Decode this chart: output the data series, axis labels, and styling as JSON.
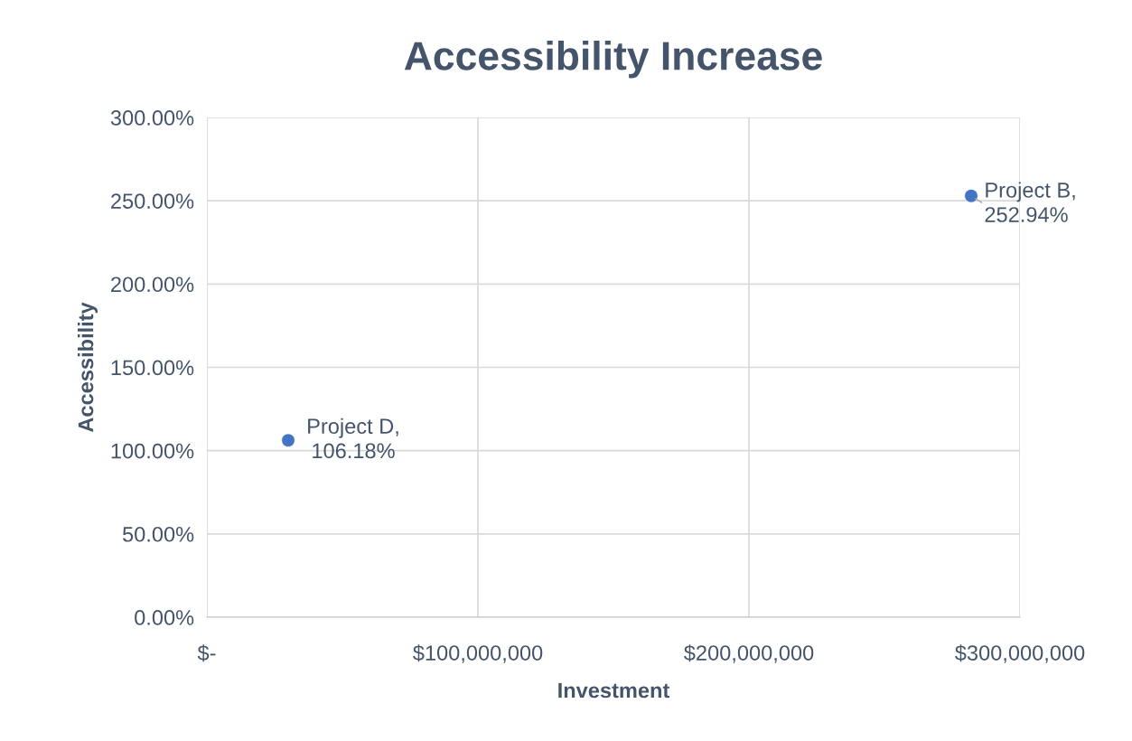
{
  "chart_data": {
    "type": "scatter",
    "title": "Accessibility Increase",
    "xlabel": "Investment",
    "ylabel": "Accessibility",
    "series": [
      {
        "color": "#4472c4",
        "x": [
          30000000,
          282000000
        ],
        "values": [
          106.18,
          252.94
        ]
      }
    ],
    "marker": "circle",
    "xlim": [
      0,
      300000000
    ],
    "xticks": [
      {
        "value": 0,
        "label": "$-"
      },
      {
        "value": 100000000,
        "label": "$100,000,000"
      },
      {
        "value": 200000000,
        "label": "$200,000,000"
      },
      {
        "value": 300000000,
        "label": "$300,000,000"
      }
    ],
    "ylim": [
      0,
      300
    ],
    "yticks": [
      {
        "value": 0,
        "label": "0.00%"
      },
      {
        "value": 50,
        "label": "50.00%"
      },
      {
        "value": 100,
        "label": "100.00%"
      },
      {
        "value": 150,
        "label": "150.00%"
      },
      {
        "value": 200,
        "label": "200.00%"
      },
      {
        "value": 250,
        "label": "250.00%"
      },
      {
        "value": 300,
        "label": "300.00%"
      }
    ],
    "grid": true,
    "annotations": [
      {
        "text": "Project D,\n106.18%",
        "x": 30000000,
        "y": 106.18
      },
      {
        "text": "Project B,\n252.94%",
        "x": 282000000,
        "y": 252.94
      }
    ]
  }
}
